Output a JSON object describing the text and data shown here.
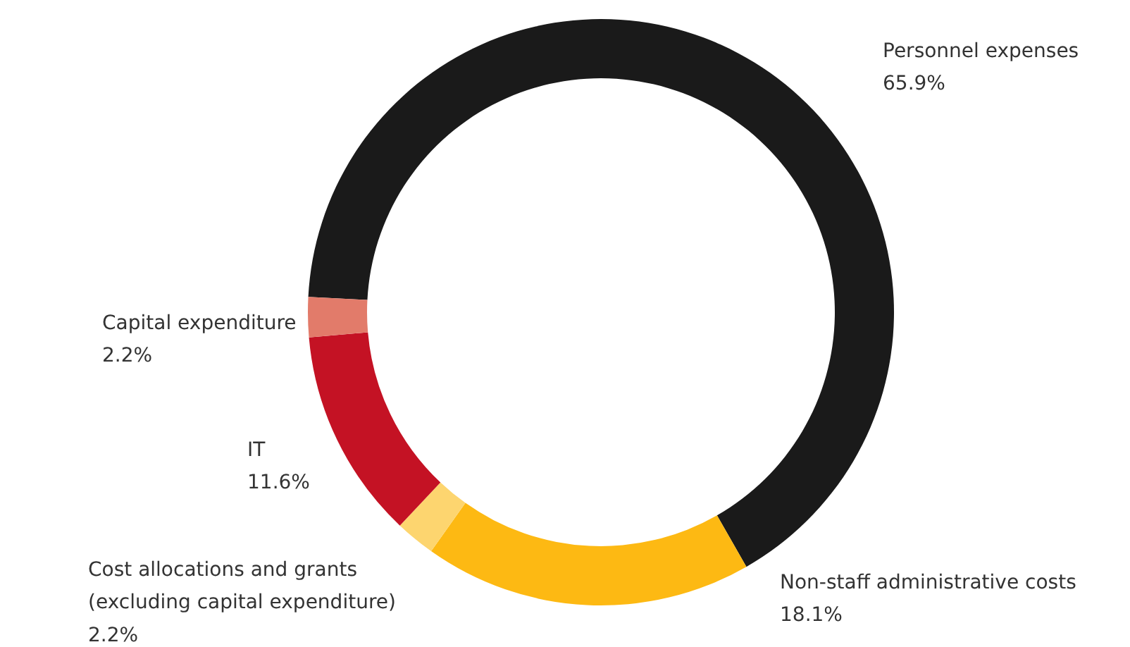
{
  "chart_data": {
    "type": "donut",
    "categories": [
      "Personnel expenses",
      "Non-staff administrative costs",
      "Cost allocations and grants\n(excluding capital expenditure)",
      "IT",
      "Capital expenditure"
    ],
    "values": [
      65.9,
      18.1,
      2.2,
      11.6,
      2.2
    ],
    "colors": [
      "#1a1a1a",
      "#fdb913",
      "#fdd56f",
      "#c41224",
      "#e27b6a"
    ],
    "value_labels": [
      "65.9%",
      "18.1%",
      "2.2%",
      "11.6%",
      "2.2%"
    ]
  }
}
